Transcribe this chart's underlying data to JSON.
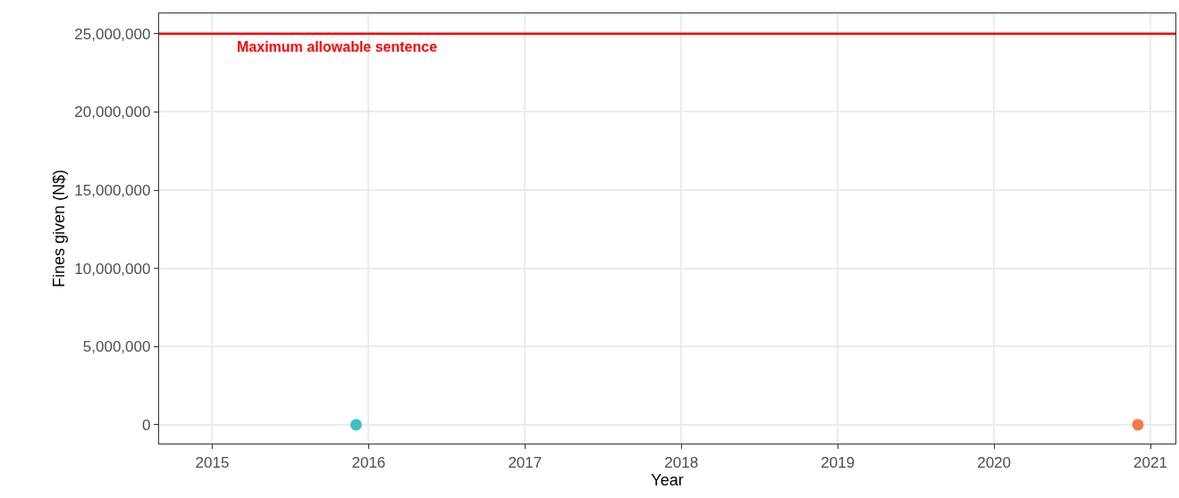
{
  "chart_data": {
    "type": "scatter",
    "xlabel": "Year",
    "ylabel": "Fines given (N$)",
    "x": [
      2015.92,
      2020.92
    ],
    "values": [
      0,
      0
    ],
    "colors": [
      "#3ebfc7",
      "#f07a45"
    ],
    "marker": "circle",
    "xlim": [
      2014.66,
      2021.16
    ],
    "xticks": [
      2015,
      2016,
      2017,
      2018,
      2019,
      2020,
      2021
    ],
    "ylim": [
      -1200000,
      26300000
    ],
    "yticks": [
      {
        "value": 0,
        "label": "0"
      },
      {
        "value": 5000000,
        "label": "5,000,000"
      },
      {
        "value": 10000000,
        "label": "10,000,000"
      },
      {
        "value": 15000000,
        "label": "15,000,000"
      },
      {
        "value": 20000000,
        "label": "20,000,000"
      },
      {
        "value": 25000000,
        "label": "25,000,000"
      }
    ],
    "ref_lines": [
      {
        "axis": "y",
        "value": 25000000,
        "label": "Maximum allowable sentence",
        "color": "#ff0000",
        "line_style": "solid"
      }
    ],
    "grid": true,
    "legend": false
  }
}
